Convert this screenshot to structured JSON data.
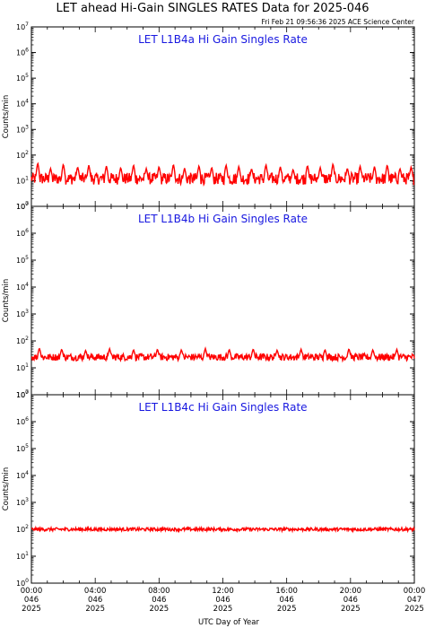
{
  "page_title": "LET ahead Hi-Gain SINGLES RATES Data for 2025-046",
  "timestamp": "Fri Feb 21 09:56:36 2025 ACE Science Center",
  "x_axis_label": "UTC Day of Year",
  "x_ticks": [
    {
      "time": "00:00",
      "doy": "046",
      "year": "2025"
    },
    {
      "time": "04:00",
      "doy": "046",
      "year": "2025"
    },
    {
      "time": "08:00",
      "doy": "046",
      "year": "2025"
    },
    {
      "time": "12:00",
      "doy": "046",
      "year": "2025"
    },
    {
      "time": "16:00",
      "doy": "046",
      "year": "2025"
    },
    {
      "time": "20:00",
      "doy": "046",
      "year": "2025"
    },
    {
      "time": "00:00",
      "doy": "047",
      "year": "2025"
    }
  ],
  "colors": {
    "series": "#ff0000",
    "panel_title": "#1818e0",
    "axis": "#000000"
  },
  "chart_data": [
    {
      "type": "line",
      "title": "LET L1B4a Hi Gain Singles Rate",
      "xlabel": "UTC Day of Year",
      "ylabel": "Counts/min",
      "yscale": "log",
      "ylim": [
        1,
        10000000
      ],
      "xlim_hours": [
        0,
        24
      ],
      "y_ticks": [
        "10^0",
        "10^1",
        "10^2",
        "10^3",
        "10^4",
        "10^5",
        "10^6",
        "10^7"
      ],
      "series": [
        {
          "baseline": 12,
          "noise_factor": 1.7,
          "x_hours": [
            0.4,
            1.2,
            2.0,
            2.9,
            3.6,
            4.7,
            5.6,
            6.4,
            7.2,
            8.0,
            8.9,
            9.6,
            10.5,
            11.3,
            12.2,
            13.0,
            13.8,
            14.7,
            15.6,
            16.4,
            17.3,
            18.1,
            18.9,
            19.8,
            20.6,
            21.5,
            22.3,
            23.1,
            23.8
          ],
          "spike_values": [
            50,
            30,
            45,
            35,
            40,
            38,
            33,
            42,
            30,
            36,
            44,
            31,
            39,
            34,
            41,
            37,
            30,
            43,
            35,
            28,
            40,
            33,
            46,
            31,
            38,
            36,
            42,
            30,
            35
          ]
        }
      ]
    },
    {
      "type": "line",
      "title": "LET L1B4b Hi Gain Singles Rate",
      "xlabel": "UTC Day of Year",
      "ylabel": "Counts/min",
      "yscale": "log",
      "ylim": [
        1,
        10000000
      ],
      "xlim_hours": [
        0,
        24
      ],
      "y_ticks": [
        "10^0",
        "10^1",
        "10^2",
        "10^3",
        "10^4",
        "10^5",
        "10^6",
        "10^7"
      ],
      "series": [
        {
          "baseline": 25,
          "noise_factor": 1.35,
          "x_hours": [
            0.5,
            1.9,
            3.4,
            4.9,
            6.4,
            7.9,
            9.4,
            10.9,
            12.4,
            13.9,
            15.4,
            16.9,
            18.4,
            19.9,
            21.4,
            22.9
          ],
          "spike_values": [
            55,
            50,
            45,
            52,
            48,
            50,
            47,
            53,
            49,
            51,
            46,
            50,
            48,
            52,
            47,
            49
          ]
        }
      ]
    },
    {
      "type": "line",
      "title": "LET L1B4c Hi Gain Singles Rate",
      "xlabel": "UTC Day of Year",
      "ylabel": "Counts/min",
      "yscale": "log",
      "ylim": [
        1,
        10000000
      ],
      "xlim_hours": [
        0,
        24
      ],
      "y_ticks": [
        "10^0",
        "10^1",
        "10^2",
        "10^3",
        "10^4",
        "10^5",
        "10^6",
        "10^7"
      ],
      "series": [
        {
          "baseline": 100,
          "noise_factor": 1.15,
          "x_hours": [],
          "spike_values": []
        }
      ]
    }
  ]
}
